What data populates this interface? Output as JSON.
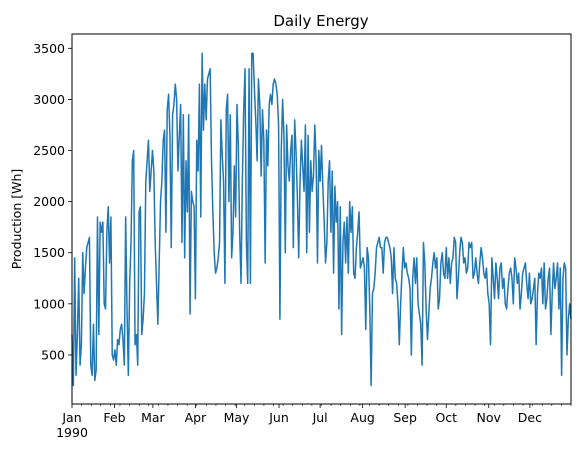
{
  "chart_data": {
    "type": "line",
    "title": "Daily Energy",
    "xlabel": "",
    "ylabel": "Production [Wh]",
    "x_start": "1990-01-01",
    "x_end": "1990-12-31",
    "xlim": [
      "1990-01-01",
      "1990-12-31"
    ],
    "ylim": [
      20,
      3640
    ],
    "yticks": [
      500,
      1000,
      1500,
      2000,
      2500,
      3000,
      3500
    ],
    "xtick_labels": [
      "Jan",
      "Feb",
      "Mar",
      "Apr",
      "May",
      "Jun",
      "Jul",
      "Aug",
      "Sep",
      "Oct",
      "Nov",
      "Dec"
    ],
    "xtick_sublabel": "1990",
    "grid": false,
    "series": [
      {
        "name": "",
        "color": "#1f77b4",
        "values": [
          700,
          200,
          1450,
          300,
          700,
          1250,
          400,
          600,
          1500,
          1100,
          1350,
          1550,
          1600,
          1650,
          400,
          300,
          800,
          250,
          350,
          1850,
          700,
          1800,
          1700,
          1800,
          1000,
          950,
          1700,
          1950,
          1400,
          1850,
          500,
          450,
          550,
          400,
          650,
          600,
          750,
          800,
          650,
          400,
          1850,
          950,
          300,
          1200,
          1600,
          2400,
          2500,
          600,
          700,
          400,
          1900,
          1950,
          700,
          850,
          1100,
          2200,
          2400,
          2600,
          2100,
          2300,
          2500,
          2300,
          1600,
          1200,
          800,
          1400,
          2000,
          2200,
          2600,
          2700,
          1700,
          2900,
          3050,
          2650,
          1550,
          2850,
          2950,
          3150,
          3000,
          2300,
          2650,
          2950,
          1600,
          2850,
          1450,
          2400,
          1900,
          2850,
          900,
          2100,
          2000,
          1950,
          1050,
          2600,
          2300,
          3150,
          1850,
          3450,
          2700,
          3150,
          2800,
          3200,
          3250,
          3300,
          2400,
          1900,
          1500,
          1300,
          1350,
          1450,
          1600,
          2800,
          2450,
          2200,
          1200,
          2900,
          3050,
          2000,
          2850,
          1450,
          1700,
          2350,
          1850,
          2950,
          2550,
          1700,
          1200,
          2200,
          2900,
          3300,
          1600,
          1200,
          3300,
          1200,
          3450,
          3450,
          3100,
          2800,
          2400,
          3200,
          2950,
          2250,
          2900,
          2600,
          1400,
          2700,
          2350,
          2950,
          3050,
          2950,
          3150,
          3200,
          3150,
          3050,
          2750,
          850,
          2500,
          3000,
          2650,
          1500,
          2750,
          2350,
          2200,
          2500,
          2650,
          1550,
          2800,
          2500,
          2050,
          1450,
          2200,
          2600,
          2350,
          2100,
          2750,
          1500,
          2650,
          1700,
          2400,
          2100,
          2250,
          2750,
          2400,
          1400,
          2500,
          2200,
          2550,
          2150,
          1800,
          1400,
          1600,
          2200,
          2400,
          1700,
          2300,
          1300,
          2150,
          1800,
          2000,
          950,
          1950,
          700,
          1600,
          1800,
          1400,
          1850,
          1300,
          2000,
          1700,
          1950,
          1300,
          1250,
          1550,
          1700,
          1900,
          1350,
          1400,
          1450,
          1350,
          750,
          1550,
          1450,
          950,
          200,
          1100,
          1150,
          1300,
          1550,
          1600,
          1650,
          1550,
          1550,
          1300,
          1600,
          1650,
          1650,
          1600,
          1550,
          1450,
          1100,
          1550,
          1250,
          1200,
          1000,
          600,
          1000,
          1300,
          1550,
          1350,
          1400,
          1300,
          1250,
          1150,
          500,
          1250,
          1450,
          1200,
          1450,
          1000,
          900,
          800,
          400,
          1600,
          1400,
          950,
          650,
          900,
          1150,
          1250,
          1400,
          1500,
          1350,
          1450,
          950,
          1050,
          1400,
          1500,
          1300,
          1250,
          1550,
          1250,
          1450,
          1200,
          1400,
          1450,
          1650,
          1600,
          1050,
          1250,
          1500,
          1650,
          1600,
          1400,
          1450,
          1300,
          1350,
          1600,
          1550,
          1600,
          1250,
          1300,
          1450,
          1300,
          1200,
          1400,
          1550,
          1450,
          1300,
          1250,
          1350,
          1100,
          1000,
          600,
          1450,
          1250,
          1050,
          1400,
          1250,
          1050,
          1350,
          1400,
          1150,
          1250,
          1000,
          950,
          1150,
          1300,
          1350,
          1250,
          1000,
          1450,
          1350,
          1200,
          1300,
          950,
          1100,
          1300,
          1350,
          1400,
          1200,
          1050,
          1300,
          1000,
          1050,
          1150,
          1250,
          600,
          1100,
          1300,
          1250,
          1350,
          1000,
          1400,
          950,
          1050,
          1250,
          1350,
          700,
          1100,
          1400,
          1150,
          1250,
          1400,
          950,
          1350,
          300,
          1250,
          1400,
          1350,
          500,
          850,
          1000,
          850
        ]
      }
    ]
  }
}
